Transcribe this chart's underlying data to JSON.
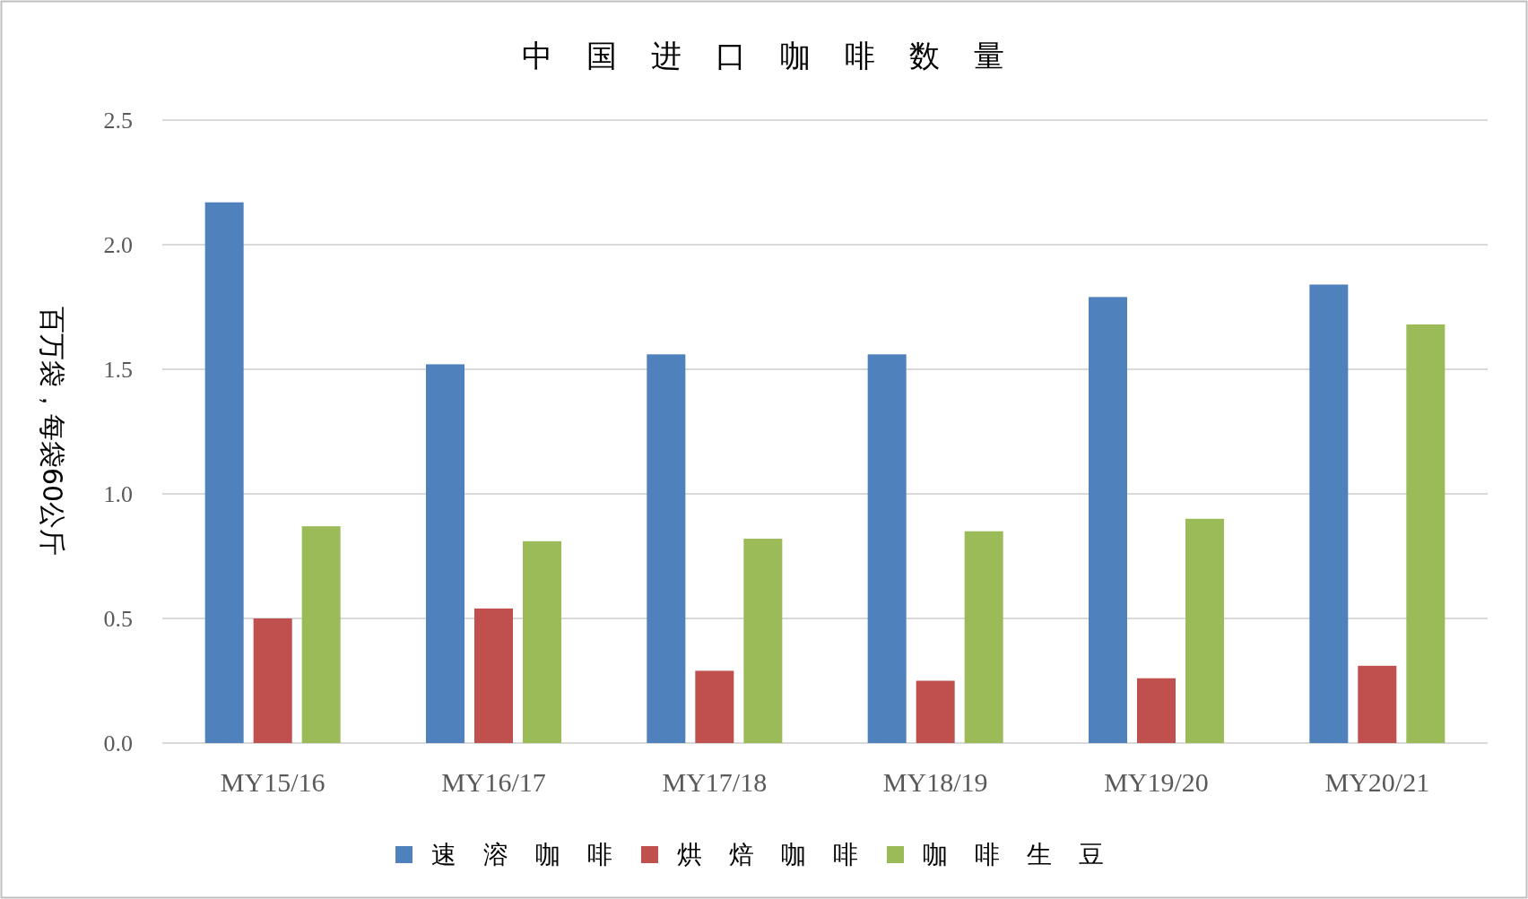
{
  "chart_data": {
    "type": "bar",
    "title": "中国进口咖啡数量",
    "ylabel": "百万袋，每袋60公斤",
    "categories": [
      "MY15/16",
      "MY16/17",
      "MY17/18",
      "MY18/19",
      "MY19/20",
      "MY20/21"
    ],
    "series": [
      {
        "name": "速溶咖啡",
        "color": "#4f81bd",
        "values": [
          2.17,
          1.52,
          1.56,
          1.56,
          1.79,
          1.84
        ]
      },
      {
        "name": "烘焙咖啡",
        "color": "#c0504d",
        "values": [
          0.5,
          0.54,
          0.29,
          0.25,
          0.26,
          0.31
        ]
      },
      {
        "name": "咖啡生豆",
        "color": "#9bbb59",
        "values": [
          0.87,
          0.81,
          0.82,
          0.85,
          0.9,
          1.68
        ]
      }
    ],
    "ylim": [
      0,
      2.5
    ],
    "yticks": [
      {
        "value": 0,
        "label": "0.0"
      },
      {
        "value": 0.5,
        "label": "0.5"
      },
      {
        "value": 1,
        "label": "1.0"
      },
      {
        "value": 1.5,
        "label": "1.5"
      },
      {
        "value": 2,
        "label": "2.0"
      },
      {
        "value": 2.5,
        "label": "2.5"
      }
    ],
    "grid": "y",
    "legend": "bottom"
  }
}
